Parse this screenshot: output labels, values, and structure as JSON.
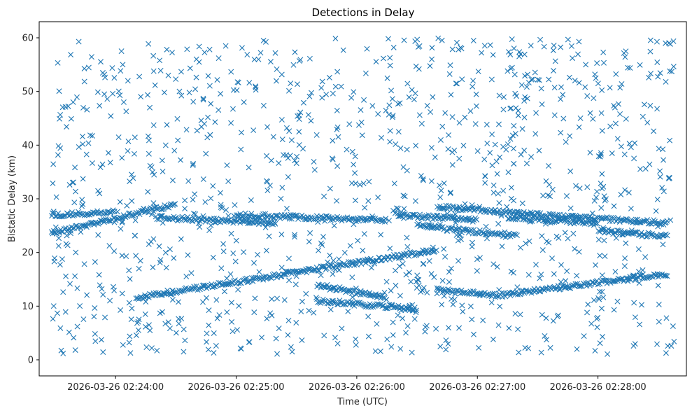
{
  "chart_data": {
    "type": "scatter",
    "title": "Detections in Delay",
    "xlabel": "Time (UTC)",
    "ylabel": "Bistatic Delay (km)",
    "x_axis": {
      "unit": "time (UTC)",
      "start": "2026-03-26 02:23:28",
      "end": "2026-03-26 02:28:38",
      "xlim": [
        "2026-03-26 02:23:22",
        "2026-03-26 02:28:44"
      ]
    },
    "ylim": [
      -3,
      63
    ],
    "xticks": [
      {
        "label": "2026-03-26 02:24:00",
        "time": "2026-03-26 02:24:00"
      },
      {
        "label": "2026-03-26 02:25:00",
        "time": "2026-03-26 02:25:00"
      },
      {
        "label": "2026-03-26 02:26:00",
        "time": "2026-03-26 02:26:00"
      },
      {
        "label": "2026-03-26 02:27:00",
        "time": "2026-03-26 02:27:00"
      },
      {
        "label": "2026-03-26 02:28:00",
        "time": "2026-03-26 02:28:00"
      }
    ],
    "yticks": [
      0,
      10,
      20,
      30,
      40,
      50,
      60
    ],
    "marker": "x",
    "color": "#1f77b4",
    "grid": false,
    "legend": "none",
    "tracks": [
      {
        "start": "2026-03-26 02:23:28",
        "end": "2026-03-26 02:24:30",
        "y_start": 23.5,
        "y_end": 29.0
      },
      {
        "start": "2026-03-26 02:23:28",
        "end": "2026-03-26 02:24:00",
        "y_start": 27.0,
        "y_end": 27.5
      },
      {
        "start": "2026-03-26 02:24:20",
        "end": "2026-03-26 02:25:20",
        "y_start": 26.5,
        "y_end": 25.5
      },
      {
        "start": "2026-03-26 02:24:10",
        "end": "2026-03-26 02:26:40",
        "y_start": 11.5,
        "y_end": 20.5
      },
      {
        "start": "2026-03-26 02:25:00",
        "end": "2026-03-26 02:26:15",
        "y_start": 27.0,
        "y_end": 26.0
      },
      {
        "start": "2026-03-26 02:25:40",
        "end": "2026-03-26 02:26:15",
        "y_start": 14.0,
        "y_end": 11.5
      },
      {
        "start": "2026-03-26 02:25:40",
        "end": "2026-03-26 02:26:30",
        "y_start": 11.0,
        "y_end": 9.5
      },
      {
        "start": "2026-03-26 02:26:20",
        "end": "2026-03-26 02:27:00",
        "y_start": 27.0,
        "y_end": 26.0
      },
      {
        "start": "2026-03-26 02:26:30",
        "end": "2026-03-26 02:27:20",
        "y_start": 25.0,
        "y_end": 23.0
      },
      {
        "start": "2026-03-26 02:26:40",
        "end": "2026-03-26 02:27:30",
        "y_start": 28.5,
        "y_end": 27.0
      },
      {
        "start": "2026-03-26 02:27:10",
        "end": "2026-03-26 02:28:35",
        "y_start": 12.0,
        "y_end": 16.0
      },
      {
        "start": "2026-03-26 02:27:15",
        "end": "2026-03-26 02:28:00",
        "y_start": 26.5,
        "y_end": 25.5
      },
      {
        "start": "2026-03-26 02:27:30",
        "end": "2026-03-26 02:28:35",
        "y_start": 27.0,
        "y_end": 25.5
      },
      {
        "start": "2026-03-26 02:28:00",
        "end": "2026-03-26 02:28:35",
        "y_start": 24.0,
        "y_end": 23.0
      },
      {
        "start": "2026-03-26 02:26:40",
        "end": "2026-03-26 02:27:10",
        "y_start": 13.0,
        "y_end": 12.0
      }
    ],
    "background_clutter": {
      "y_range": [
        1,
        60
      ]
    }
  }
}
